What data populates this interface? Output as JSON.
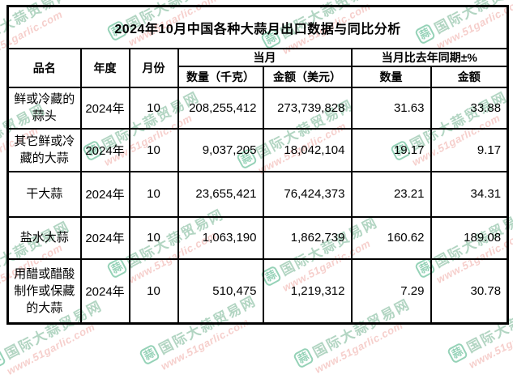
{
  "chart_data": {
    "type": "table",
    "title": "2024年10月中国各种大蒜月出口数据与同比分析",
    "headers": {
      "product": "品名",
      "year": "年度",
      "month": "月份",
      "current_month_group": "当月",
      "qty_kg": "数量（千克）",
      "amount_usd": "金额（美元）",
      "yoy_group": "当月比去年同期±%",
      "yoy_qty": "数量",
      "yoy_amount": "金额"
    },
    "rows": [
      {
        "product": "鲜或冷藏的蒜头",
        "year": "2024年",
        "month": "10",
        "qty": "208,255,412",
        "amount": "273,739,828",
        "yoy_qty": "31.63",
        "yoy_amount": "33.88"
      },
      {
        "product": "其它鲜或冷藏的大蒜",
        "year": "2024年",
        "month": "10",
        "qty": "9,037,205",
        "amount": "18,042,104",
        "yoy_qty": "19.17",
        "yoy_amount": "9.17"
      },
      {
        "product": "干大蒜",
        "year": "2024年",
        "month": "10",
        "qty": "23,655,421",
        "amount": "76,424,373",
        "yoy_qty": "23.21",
        "yoy_amount": "34.31"
      },
      {
        "product": "盐水大蒜",
        "year": "2024年",
        "month": "10",
        "qty": "1,063,190",
        "amount": "1,862,739",
        "yoy_qty": "160.62",
        "yoy_amount": "189.08"
      },
      {
        "product": "用醋或醋酸制作或保藏的大蒜",
        "year": "2024年",
        "month": "10",
        "qty": "510,475",
        "amount": "1,219,312",
        "yoy_qty": "7.29",
        "yoy_amount": "30.78"
      }
    ]
  },
  "watermark": {
    "logo_char": "蒜",
    "brand_text": "国际大蒜贸易网",
    "url_text": "www.51garlic.com",
    "brand_color": "#74b392",
    "url_color": "#efa9a4",
    "logo_color": "#3fae7e"
  }
}
